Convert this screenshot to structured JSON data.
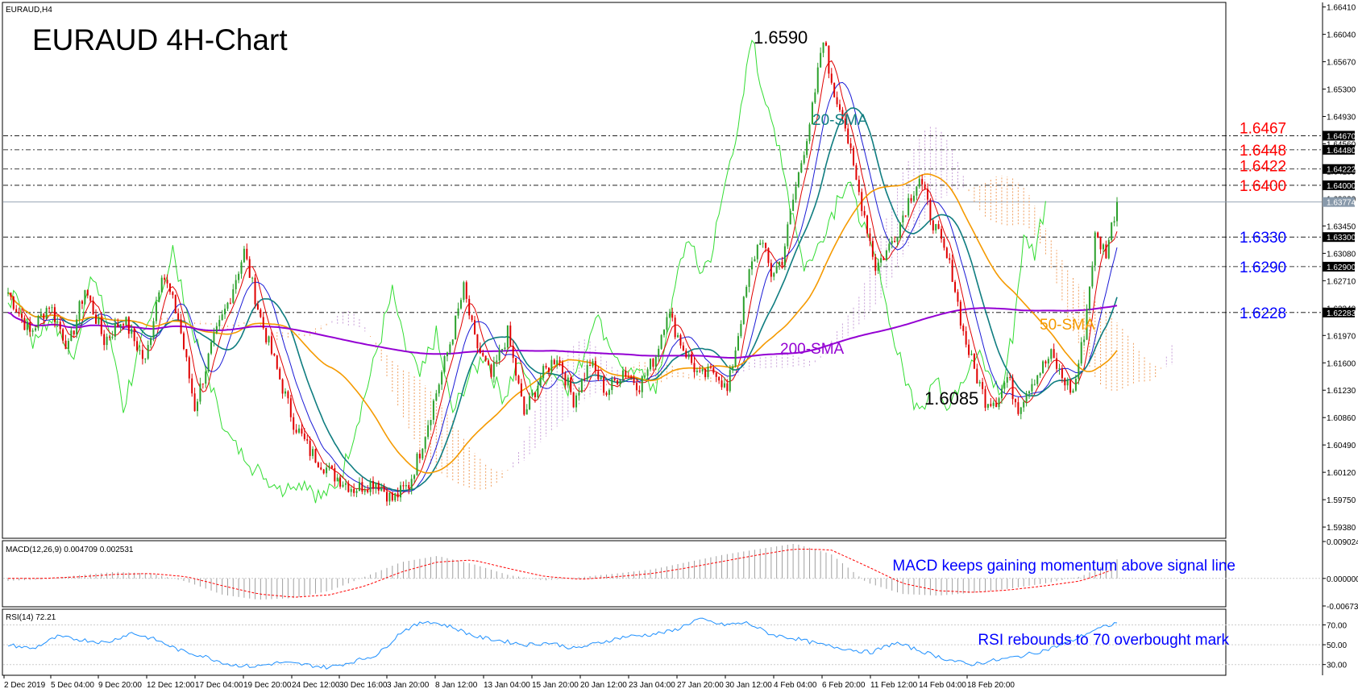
{
  "chart_data": {
    "type": "candlestick",
    "symbol_label": "EURAUD,H4",
    "title": "EURAUD 4H-Chart",
    "colors": {
      "up": "#2ca02c",
      "down": "#e00000",
      "sma20": "#0f7d80",
      "sma50": "#f59a00",
      "sma200": "#9400d3",
      "ma_fast": "#e00000",
      "ma_blue": "#1a1ad6",
      "chikou": "#33dd33",
      "cloud_orange": "#f0a060",
      "cloud_purple": "#c8a0d8",
      "level_red": "#ff0000",
      "level_blue": "#0000ff",
      "macd_signal": "#ff0000",
      "macd_hist": "#a0a0a0",
      "rsi": "#1e90ff",
      "grid": "#000000"
    },
    "price_axis": {
      "ylim": [
        1.5925,
        1.6645
      ],
      "ticks": [
        "1.66410",
        "1.66040",
        "1.65670",
        "1.65300",
        "1.64930",
        "1.64560",
        "1.64190",
        "1.63820",
        "1.63450",
        "1.63080",
        "1.62710",
        "1.62340",
        "1.61970",
        "1.61600",
        "1.61230",
        "1.60860",
        "1.60490",
        "1.60120",
        "1.59750",
        "1.59380"
      ]
    },
    "levels": [
      {
        "value": 1.6467,
        "label": "1.6467",
        "axis_label": "1.64670",
        "color": "red"
      },
      {
        "value": 1.6448,
        "label": "1.6448",
        "axis_label": "1.64480",
        "color": "red"
      },
      {
        "value": 1.6422,
        "label": "1.6422",
        "axis_label": "1.64222",
        "color": "red"
      },
      {
        "value": 1.64,
        "label": "1.6400",
        "axis_label": "1.64000",
        "color": "red"
      },
      {
        "value": 1.633,
        "label": "1.6330",
        "axis_label": "1.63300",
        "color": "blue"
      },
      {
        "value": 1.629,
        "label": "1.6290",
        "axis_label": "1.62900",
        "color": "blue"
      },
      {
        "value": 1.6228,
        "label": "1.6228",
        "axis_label": "1.62283",
        "color": "blue"
      }
    ],
    "current_price": {
      "value": 1.63774,
      "label": "1.63774"
    },
    "annotations": [
      {
        "text": "1.6590",
        "kind": "high"
      },
      {
        "text": "1.6085",
        "kind": "low"
      },
      {
        "text": "20-SMA"
      },
      {
        "text": "50-SMA"
      },
      {
        "text": "200-SMA"
      }
    ],
    "x_tick_labels": [
      "2 Dec 2019",
      "5 Dec 04:00",
      "9 Dec 20:00",
      "12 Dec 12:00",
      "17 Dec 04:00",
      "19 Dec 20:00",
      "24 Dec 12:00",
      "30 Dec 16:00",
      "3 Jan 20:00",
      "8 Jan 12:00",
      "13 Jan 04:00",
      "15 Jan 20:00",
      "20 Jan 12:00",
      "23 Jan 04:00",
      "27 Jan 20:00",
      "30 Jan 12:00",
      "4 Feb 04:00",
      "6 Feb 20:00",
      "11 Feb 12:00",
      "14 Feb 04:00",
      "18 Feb 20:00"
    ],
    "price_path": [
      [
        0,
        1.6255
      ],
      [
        8,
        1.62
      ],
      [
        15,
        1.624
      ],
      [
        22,
        1.618
      ],
      [
        28,
        1.626
      ],
      [
        35,
        1.619
      ],
      [
        42,
        1.622
      ],
      [
        50,
        1.616
      ],
      [
        56,
        1.6285
      ],
      [
        62,
        1.622
      ],
      [
        68,
        1.61
      ],
      [
        74,
        1.618
      ],
      [
        80,
        1.624
      ],
      [
        86,
        1.631
      ],
      [
        92,
        1.622
      ],
      [
        98,
        1.615
      ],
      [
        104,
        1.608
      ],
      [
        110,
        1.604
      ],
      [
        118,
        1.601
      ],
      [
        126,
        1.599
      ],
      [
        134,
        1.6
      ],
      [
        140,
        1.5975
      ],
      [
        146,
        1.5995
      ],
      [
        150,
        1.604
      ],
      [
        156,
        1.612
      ],
      [
        162,
        1.62
      ],
      [
        166,
        1.626
      ],
      [
        170,
        1.619
      ],
      [
        176,
        1.614
      ],
      [
        182,
        1.62
      ],
      [
        188,
        1.609
      ],
      [
        194,
        1.614
      ],
      [
        200,
        1.617
      ],
      [
        206,
        1.611
      ],
      [
        212,
        1.616
      ],
      [
        218,
        1.612
      ],
      [
        224,
        1.615
      ],
      [
        230,
        1.613
      ],
      [
        236,
        1.617
      ],
      [
        240,
        1.623
      ],
      [
        246,
        1.618
      ],
      [
        252,
        1.614
      ],
      [
        258,
        1.615
      ],
      [
        262,
        1.612
      ],
      [
        266,
        1.62
      ],
      [
        270,
        1.628
      ],
      [
        274,
        1.633
      ],
      [
        278,
        1.628
      ],
      [
        282,
        1.63
      ],
      [
        286,
        1.638
      ],
      [
        290,
        1.645
      ],
      [
        294,
        1.652
      ],
      [
        296,
        1.658
      ],
      [
        298,
        1.659
      ],
      [
        300,
        1.653
      ],
      [
        304,
        1.65
      ],
      [
        308,
        1.642
      ],
      [
        312,
        1.636
      ],
      [
        316,
        1.629
      ],
      [
        320,
        1.631
      ],
      [
        324,
        1.634
      ],
      [
        328,
        1.638
      ],
      [
        332,
        1.641
      ],
      [
        336,
        1.636
      ],
      [
        340,
        1.632
      ],
      [
        344,
        1.628
      ],
      [
        348,
        1.62
      ],
      [
        352,
        1.615
      ],
      [
        356,
        1.611
      ],
      [
        360,
        1.611
      ],
      [
        364,
        1.614
      ],
      [
        368,
        1.61
      ],
      [
        372,
        1.613
      ],
      [
        376,
        1.615
      ],
      [
        380,
        1.617
      ],
      [
        384,
        1.614
      ],
      [
        388,
        1.612
      ],
      [
        392,
        1.62
      ],
      [
        396,
        1.633
      ],
      [
        400,
        1.631
      ],
      [
        404,
        1.6378
      ]
    ],
    "candle_count": 405,
    "macd": {
      "label": "MACD(12,26,9) 0.004709 0.002531",
      "ylim": [
        -0.006735,
        0.009024
      ],
      "ticks": [
        "0.009024",
        "0.000000",
        "-0.006735"
      ],
      "annotation": "MACD keeps gaining momentum above signal line",
      "histogram": [
        -0.0006,
        -0.0002,
        0.0008,
        0.0016,
        0.0012,
        -0.0008,
        -0.004,
        -0.0052,
        -0.0048,
        -0.003,
        0.0005,
        0.004,
        0.0055,
        0.0035,
        0.0008,
        -0.0005,
        0.0003,
        0.0012,
        0.0022,
        0.004,
        0.0058,
        0.0072,
        0.0085,
        0.006,
        -0.001,
        -0.0038,
        -0.0042,
        -0.0035,
        -0.0025,
        -0.0012,
        0.0005,
        0.0047
      ],
      "signal": [
        0.0,
        0.0,
        0.0004,
        0.001,
        0.0012,
        0.0004,
        -0.0018,
        -0.0038,
        -0.0046,
        -0.004,
        -0.0018,
        0.0016,
        0.004,
        0.0045,
        0.0024,
        0.0005,
        -0.0002,
        0.0004,
        0.0012,
        0.0026,
        0.0042,
        0.0058,
        0.0072,
        0.007,
        0.003,
        -0.0012,
        -0.003,
        -0.0034,
        -0.0028,
        -0.0018,
        -0.0006,
        0.0025
      ]
    },
    "rsi": {
      "label": "RSI(14) 72.21",
      "ylim": [
        20,
        85
      ],
      "ticks": [
        "70.00",
        "50.00",
        "30.00"
      ],
      "annotation": "RSI rebounds to 70 overbought mark",
      "values": [
        50,
        46,
        58,
        55,
        52,
        62,
        55,
        44,
        38,
        30,
        28,
        32,
        30,
        27,
        33,
        40,
        64,
        74,
        68,
        58,
        54,
        50,
        52,
        46,
        52,
        58,
        60,
        64,
        76,
        70,
        72,
        60,
        56,
        50,
        46,
        42,
        52,
        44,
        36,
        30,
        34,
        38,
        44,
        52,
        64,
        72
      ]
    }
  }
}
